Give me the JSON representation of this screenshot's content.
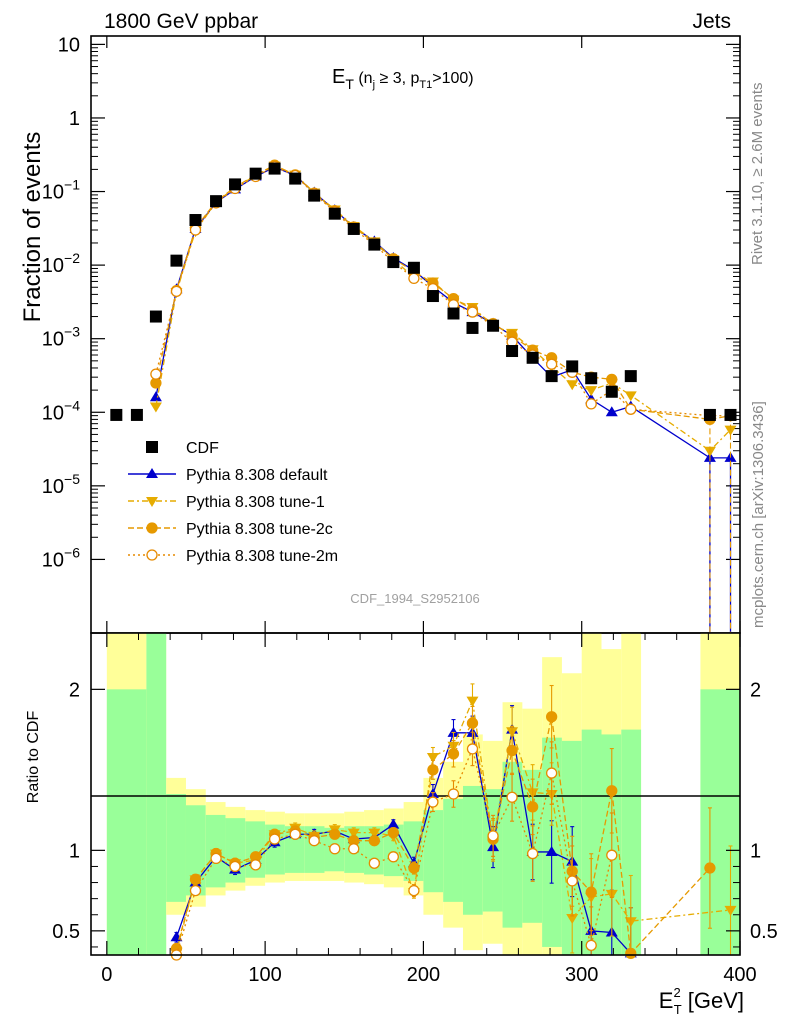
{
  "header": {
    "left": "1800 GeV ppbar",
    "right": "Jets",
    "rivet": "Rivet 3.1.10, ≥ 2.6M events",
    "mcplots": "mcplots.cern.ch [arXiv:1306.3436]",
    "analysis_id": "CDF_1994_S2952106"
  },
  "colors": {
    "cdf": "#000000",
    "default": "#0000cc",
    "tune1": "#e6ac00",
    "tune2c": "#e69900",
    "tune2m": "#e68a00",
    "band_inner": "#99ff99",
    "band_outer": "#ffff99"
  },
  "chart_data": [
    {
      "type": "scatter",
      "title_main": "E",
      "title_sub": "T",
      "title_paren": " (n",
      "title_j": "j",
      "title_ge": " ≥ 3, p",
      "title_t1": "T1",
      "title_end": ">100)",
      "ylabel": "Fraction of events",
      "yscale": "log",
      "ylim": [
        1e-07,
        13
      ],
      "xlim": [
        -10,
        400
      ],
      "y_ticks": [
        {
          "v": 10,
          "m": "10",
          "e": ""
        },
        {
          "v": 1,
          "m": "1",
          "e": ""
        },
        {
          "v": 0.1,
          "m": "10",
          "e": "−1"
        },
        {
          "v": 0.01,
          "m": "10",
          "e": "−2"
        },
        {
          "v": 0.001,
          "m": "10",
          "e": "−3"
        },
        {
          "v": 0.0001,
          "m": "10",
          "e": "−4"
        },
        {
          "v": 1e-05,
          "m": "10",
          "e": "−5"
        },
        {
          "v": 1e-06,
          "m": "10",
          "e": "−6"
        }
      ],
      "legend": [
        {
          "key": "cdf",
          "label": "CDF"
        },
        {
          "key": "default",
          "label": "Pythia 8.308 default"
        },
        {
          "key": "tune1",
          "label": "Pythia 8.308 tune-1"
        },
        {
          "key": "tune2c",
          "label": "Pythia 8.308 tune-2c"
        },
        {
          "key": "tune2m",
          "label": "Pythia 8.308 tune-2m"
        }
      ],
      "cdf": {
        "x": [
          6,
          19,
          31,
          44,
          56,
          69,
          81,
          94,
          106,
          119,
          131,
          144,
          156,
          169,
          181,
          194,
          206,
          219,
          231,
          244,
          256,
          269,
          281,
          294,
          306,
          319,
          331,
          381,
          394
        ],
        "y": [
          9.2e-05,
          9.2e-05,
          0.002,
          0.0115,
          0.041,
          0.074,
          0.125,
          0.175,
          0.205,
          0.15,
          0.088,
          0.05,
          0.031,
          0.019,
          0.011,
          0.0092,
          0.0038,
          0.0022,
          0.0014,
          0.0015,
          0.00068,
          0.00055,
          0.00031,
          0.00042,
          0.00029,
          0.00019,
          0.00031,
          9.2e-05,
          9.2e-05
        ]
      },
      "series": [
        {
          "key": "default",
          "name": "Pythia 8.308 default",
          "x": [
            31,
            44,
            56,
            69,
            81,
            94,
            106,
            119,
            131,
            144,
            156,
            169,
            181,
            194,
            206,
            219,
            231,
            244,
            256,
            269,
            281,
            294,
            306,
            319,
            331,
            381,
            394
          ],
          "y": [
            0.00016,
            0.0047,
            0.031,
            0.071,
            0.107,
            0.16,
            0.215,
            0.165,
            0.097,
            0.056,
            0.033,
            0.021,
            0.0125,
            0.0085,
            0.0051,
            0.0031,
            0.0023,
            0.0016,
            0.0011,
            0.00055,
            0.0003,
            0.00038,
            0.00015,
            0.0001,
            0.00012,
            2.4e-05,
            2.4e-05
          ]
        },
        {
          "key": "tune1",
          "name": "Pythia 8.308 tune-1",
          "x": [
            31,
            44,
            56,
            69,
            81,
            94,
            106,
            119,
            131,
            144,
            156,
            169,
            181,
            194,
            206,
            219,
            231,
            244,
            256,
            269,
            281,
            294,
            306,
            319,
            331,
            381,
            394
          ],
          "y": [
            0.00012,
            0.0043,
            0.029,
            0.072,
            0.113,
            0.165,
            0.225,
            0.17,
            0.097,
            0.057,
            0.034,
            0.021,
            0.012,
            0.0068,
            0.006,
            0.0034,
            0.0027,
            0.0015,
            0.0012,
            0.00072,
            0.00042,
            0.00024,
            0.0002,
            0.00025,
            0.00017,
            3e-05,
            5.8e-05
          ]
        },
        {
          "key": "tune2c",
          "name": "Pythia 8.308 tune-2c",
          "x": [
            31,
            44,
            56,
            69,
            81,
            94,
            106,
            119,
            131,
            144,
            156,
            169,
            181,
            194,
            206,
            219,
            231,
            244,
            256,
            269,
            281,
            294,
            306,
            319,
            331,
            381,
            394
          ],
          "y": [
            0.00025,
            0.0045,
            0.032,
            0.073,
            0.115,
            0.168,
            0.228,
            0.168,
            0.095,
            0.055,
            0.033,
            0.02,
            0.0122,
            0.0082,
            0.0057,
            0.0035,
            0.0025,
            0.0016,
            0.0011,
            0.0007,
            0.00055,
            0.00035,
            0.0003,
            0.00028,
            0.00011,
            8e-05,
            9e-05
          ]
        },
        {
          "key": "tune2m",
          "name": "Pythia 8.308 tune-2m",
          "x": [
            31,
            44,
            56,
            69,
            81,
            94,
            106,
            119,
            131,
            144,
            156,
            169,
            181,
            194,
            206,
            219,
            231,
            244,
            256,
            269,
            281,
            294,
            306,
            319,
            331,
            381,
            394
          ],
          "y": [
            0.00033,
            0.0044,
            0.03,
            0.07,
            0.11,
            0.16,
            0.218,
            0.165,
            0.093,
            0.053,
            0.031,
            0.019,
            0.011,
            0.0066,
            0.0048,
            0.0029,
            0.0023,
            0.0015,
            0.0009,
            0.0006,
            0.00045,
            0.00035,
            0.00013,
            0.0002,
            0.00011,
            9e-05,
            9e-05
          ]
        }
      ]
    },
    {
      "type": "scatter",
      "ylabel": "Ratio to CDF",
      "xlabel_main": "E",
      "xlabel_sup": "2",
      "xlabel_sub": "T",
      "xlabel_unit": " [GeV]",
      "ylim": [
        0.35,
        2.35
      ],
      "xlim": [
        -10,
        400
      ],
      "y_ticks": [
        "0.5",
        "1",
        "2"
      ],
      "x_ticks": [
        "0",
        "100",
        "200",
        "300",
        "400"
      ],
      "bands": [
        {
          "x0": 0,
          "x1": 25,
          "in_lo": 0.35,
          "in_hi": 2.0,
          "out_lo": 0.35,
          "out_hi": 2.35
        },
        {
          "x0": 25,
          "x1": 37.5,
          "in_lo": 0.35,
          "in_hi": 2.35,
          "out_lo": 0.35,
          "out_hi": 2.35
        },
        {
          "x0": 37.5,
          "x1": 50,
          "in_lo": 0.68,
          "in_hi": 1.35,
          "out_lo": 0.6,
          "out_hi": 1.45
        },
        {
          "x0": 50,
          "x1": 62.5,
          "in_lo": 0.72,
          "in_hi": 1.28,
          "out_lo": 0.65,
          "out_hi": 1.38
        },
        {
          "x0": 62.5,
          "x1": 75,
          "in_lo": 0.77,
          "in_hi": 1.22,
          "out_lo": 0.72,
          "out_hi": 1.3
        },
        {
          "x0": 75,
          "x1": 87.5,
          "in_lo": 0.8,
          "in_hi": 1.2,
          "out_lo": 0.75,
          "out_hi": 1.27
        },
        {
          "x0": 87.5,
          "x1": 100,
          "in_lo": 0.83,
          "in_hi": 1.18,
          "out_lo": 0.78,
          "out_hi": 1.25
        },
        {
          "x0": 100,
          "x1": 112.5,
          "in_lo": 0.85,
          "in_hi": 1.16,
          "out_lo": 0.8,
          "out_hi": 1.24
        },
        {
          "x0": 112.5,
          "x1": 125,
          "in_lo": 0.86,
          "in_hi": 1.15,
          "out_lo": 0.81,
          "out_hi": 1.23
        },
        {
          "x0": 125,
          "x1": 137.5,
          "in_lo": 0.86,
          "in_hi": 1.15,
          "out_lo": 0.81,
          "out_hi": 1.23
        },
        {
          "x0": 137.5,
          "x1": 150,
          "in_lo": 0.87,
          "in_hi": 1.14,
          "out_lo": 0.81,
          "out_hi": 1.23
        },
        {
          "x0": 150,
          "x1": 162.5,
          "in_lo": 0.86,
          "in_hi": 1.15,
          "out_lo": 0.8,
          "out_hi": 1.24
        },
        {
          "x0": 162.5,
          "x1": 175,
          "in_lo": 0.85,
          "in_hi": 1.15,
          "out_lo": 0.79,
          "out_hi": 1.25
        },
        {
          "x0": 175,
          "x1": 187.5,
          "in_lo": 0.84,
          "in_hi": 1.16,
          "out_lo": 0.77,
          "out_hi": 1.26
        },
        {
          "x0": 187.5,
          "x1": 200,
          "in_lo": 0.81,
          "in_hi": 1.18,
          "out_lo": 0.72,
          "out_hi": 1.3
        },
        {
          "x0": 200,
          "x1": 212.5,
          "in_lo": 0.74,
          "in_hi": 1.25,
          "out_lo": 0.6,
          "out_hi": 1.45
        },
        {
          "x0": 212.5,
          "x1": 225,
          "in_lo": 0.68,
          "in_hi": 1.32,
          "out_lo": 0.52,
          "out_hi": 1.55
        },
        {
          "x0": 225,
          "x1": 237.5,
          "in_lo": 0.6,
          "in_hi": 1.4,
          "out_lo": 0.38,
          "out_hi": 1.72
        },
        {
          "x0": 237.5,
          "x1": 250,
          "in_lo": 0.62,
          "in_hi": 1.38,
          "out_lo": 0.42,
          "out_hi": 1.68
        },
        {
          "x0": 250,
          "x1": 262.5,
          "in_lo": 0.52,
          "in_hi": 1.55,
          "out_lo": 0.35,
          "out_hi": 1.92
        },
        {
          "x0": 262.5,
          "x1": 275,
          "in_lo": 0.55,
          "in_hi": 1.5,
          "out_lo": 0.35,
          "out_hi": 1.88
        },
        {
          "x0": 275,
          "x1": 287.5,
          "in_lo": 0.4,
          "in_hi": 1.7,
          "out_lo": 0.35,
          "out_hi": 2.2
        },
        {
          "x0": 287.5,
          "x1": 300,
          "in_lo": 0.35,
          "in_hi": 1.68,
          "out_lo": 0.35,
          "out_hi": 2.1
        },
        {
          "x0": 300,
          "x1": 312.5,
          "in_lo": 0.35,
          "in_hi": 1.75,
          "out_lo": 0.35,
          "out_hi": 2.35
        },
        {
          "x0": 312.5,
          "x1": 325,
          "in_lo": 0.35,
          "in_hi": 1.72,
          "out_lo": 0.35,
          "out_hi": 2.25
        },
        {
          "x0": 325,
          "x1": 337.5,
          "in_lo": 0.35,
          "in_hi": 1.75,
          "out_lo": 0.35,
          "out_hi": 2.35
        },
        {
          "x0": 375,
          "x1": 400,
          "in_lo": 0.35,
          "in_hi": 2.0,
          "out_lo": 0.35,
          "out_hi": 2.35
        }
      ],
      "series": [
        {
          "key": "default",
          "name": "Pythia 8.308 default",
          "x": [
            44,
            56,
            69,
            81,
            94,
            106,
            119,
            131,
            144,
            156,
            169,
            181,
            194,
            206,
            219,
            231,
            244,
            256,
            269,
            281,
            294,
            306,
            319,
            331
          ],
          "y": [
            0.46,
            0.8,
            0.96,
            0.88,
            0.94,
            1.05,
            1.1,
            1.1,
            1.12,
            1.07,
            1.08,
            1.16,
            0.92,
            1.35,
            1.73,
            1.73,
            1.02,
            1.75,
            0.99,
            0.99,
            0.93,
            0.5,
            0.49,
            0.36
          ]
        },
        {
          "key": "tune1",
          "name": "Pythia 8.308 tune-1",
          "x": [
            44,
            56,
            69,
            81,
            94,
            106,
            119,
            131,
            144,
            156,
            169,
            181,
            194,
            206,
            219,
            231,
            244,
            256,
            269,
            281,
            294,
            306,
            319,
            331,
            394
          ],
          "y": [
            0.37,
            0.82,
            0.98,
            0.92,
            0.94,
            1.1,
            1.14,
            1.09,
            1.13,
            1.11,
            1.11,
            1.09,
            0.74,
            1.58,
            1.65,
            1.93,
            1.06,
            1.74,
            1.36,
            1.35,
            0.58,
            0.71,
            0.73,
            0.56,
            0.63
          ]
        },
        {
          "key": "tune2c",
          "name": "Pythia 8.308 tune-2c",
          "x": [
            44,
            56,
            69,
            81,
            94,
            106,
            119,
            131,
            144,
            156,
            169,
            181,
            194,
            206,
            219,
            231,
            244,
            256,
            269,
            281,
            294,
            306,
            319,
            331,
            381
          ],
          "y": [
            0.39,
            0.82,
            0.98,
            0.92,
            0.96,
            1.1,
            1.12,
            1.08,
            1.1,
            1.06,
            1.06,
            1.11,
            0.89,
            1.5,
            1.6,
            1.79,
            1.07,
            1.62,
            1.27,
            1.83,
            0.87,
            0.74,
            1.37,
            0.36,
            0.89
          ]
        },
        {
          "key": "tune2m",
          "name": "Pythia 8.308 tune-2m",
          "x": [
            44,
            56,
            69,
            81,
            94,
            106,
            119,
            131,
            144,
            156,
            169,
            181,
            194,
            206,
            219,
            231,
            244,
            256,
            269,
            281,
            294,
            306,
            319
          ],
          "y": [
            0.35,
            0.75,
            0.95,
            0.9,
            0.91,
            1.07,
            1.1,
            1.06,
            1.01,
            1.01,
            0.92,
            0.96,
            0.75,
            1.3,
            1.35,
            1.63,
            1.09,
            1.33,
            0.98,
            1.48,
            0.81,
            0.41,
            0.97
          ]
        }
      ]
    }
  ]
}
